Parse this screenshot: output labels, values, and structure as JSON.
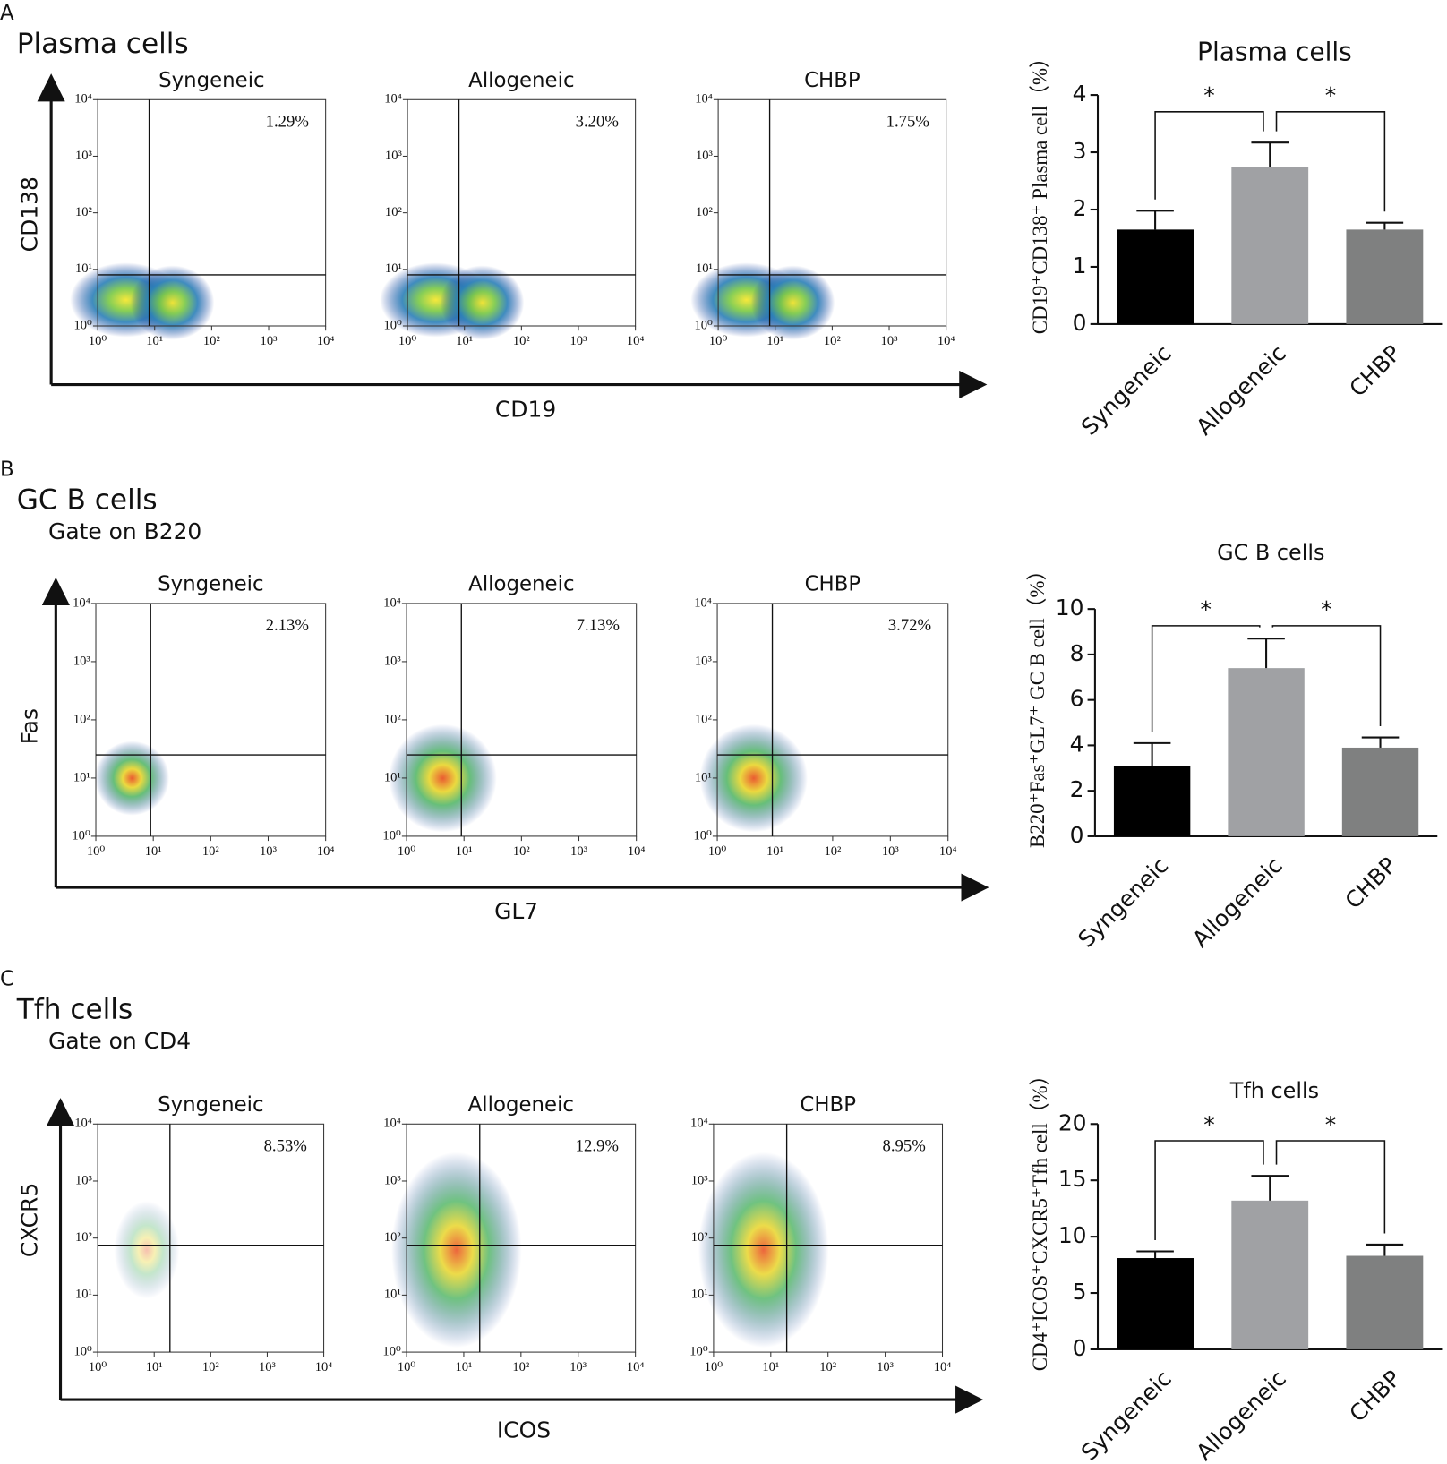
{
  "flow_ticks": [
    {
      "value": 1,
      "label": "10⁰"
    },
    {
      "value": 10,
      "label": "10¹"
    },
    {
      "value": 100,
      "label": "10²"
    },
    {
      "value": 1000,
      "label": "10³"
    },
    {
      "value": 10000,
      "label": "10⁴"
    }
  ],
  "flow_log_scale": true,
  "panels": [
    {
      "label": "A",
      "title": "Plasma cells",
      "x_label": "CD19",
      "y_label": "CD138",
      "gate": [
        8,
        8
      ],
      "plots": [
        {
          "title": "Syngeneic",
          "percent": "1.29%"
        },
        {
          "title": "Allogeneic",
          "percent": "3.20%"
        },
        {
          "title": "CHBP",
          "percent": "1.75%"
        }
      ],
      "chart_data": {
        "type": "bar",
        "title": "Plasma cells",
        "y_label": "CD19⁺CD138⁺ Plasma cell（%）",
        "categories": [
          "Syngeneic",
          "Allogeneic",
          "CHBP"
        ],
        "values": [
          1.65,
          2.75,
          1.65
        ],
        "errors": [
          0.33,
          0.42,
          0.12
        ],
        "colors": [
          "#000000",
          "#a0a1a4",
          "#7f8080"
        ],
        "ylim": [
          0,
          4
        ],
        "yticks": [
          0,
          1,
          2,
          3,
          4
        ],
        "significance": [
          {
            "from": 0,
            "to": 1,
            "label": "*"
          },
          {
            "from": 1,
            "to": 2,
            "label": "*"
          }
        ]
      }
    },
    {
      "label": "B",
      "title": "GC B cells",
      "gate_text": "Gate on B220",
      "x_label": "GL7",
      "y_label": "Fas",
      "gate": [
        9,
        25
      ],
      "plots": [
        {
          "title": "Syngeneic",
          "percent": "2.13%"
        },
        {
          "title": "Allogeneic",
          "percent": "7.13%"
        },
        {
          "title": "CHBP",
          "percent": "3.72%"
        }
      ],
      "chart_data": {
        "type": "bar",
        "title": "GC B cells",
        "y_label": "B220⁺Fas⁺GL7⁺ GC B cell（%）",
        "categories": [
          "Syngeneic",
          "Allogeneic",
          "CHBP"
        ],
        "values": [
          3.1,
          7.4,
          3.9
        ],
        "errors": [
          1.0,
          1.3,
          0.45
        ],
        "colors": [
          "#000000",
          "#a0a1a4",
          "#7f8080"
        ],
        "ylim": [
          0,
          10
        ],
        "yticks": [
          0,
          2,
          4,
          6,
          8,
          10
        ],
        "significance": [
          {
            "from": 0,
            "to": 1,
            "label": "*"
          },
          {
            "from": 1,
            "to": 2,
            "label": "*"
          }
        ]
      }
    },
    {
      "label": "C",
      "title": "Tfh cells",
      "gate_text": "Gate on CD4",
      "x_label": "ICOS",
      "y_label": "CXCR5",
      "gate": [
        19,
        75
      ],
      "plots": [
        {
          "title": "Syngeneic",
          "percent": "8.53%"
        },
        {
          "title": "Allogeneic",
          "percent": "12.9%"
        },
        {
          "title": "CHBP",
          "percent": "8.95%"
        }
      ],
      "chart_data": {
        "type": "bar",
        "title": "Tfh cells",
        "y_label": "CD4⁺ICOS⁺CXCR5⁺Tfh cell（%）",
        "categories": [
          "Syngeneic",
          "Allogeneic",
          "CHBP"
        ],
        "values": [
          8.1,
          13.2,
          8.3
        ],
        "errors": [
          0.6,
          2.2,
          1.0
        ],
        "colors": [
          "#000000",
          "#a0a1a4",
          "#7f8080"
        ],
        "ylim": [
          0,
          20
        ],
        "yticks": [
          0,
          5,
          10,
          15,
          20
        ],
        "significance": [
          {
            "from": 0,
            "to": 1,
            "label": "*"
          },
          {
            "from": 1,
            "to": 2,
            "label": "*"
          }
        ]
      }
    }
  ]
}
